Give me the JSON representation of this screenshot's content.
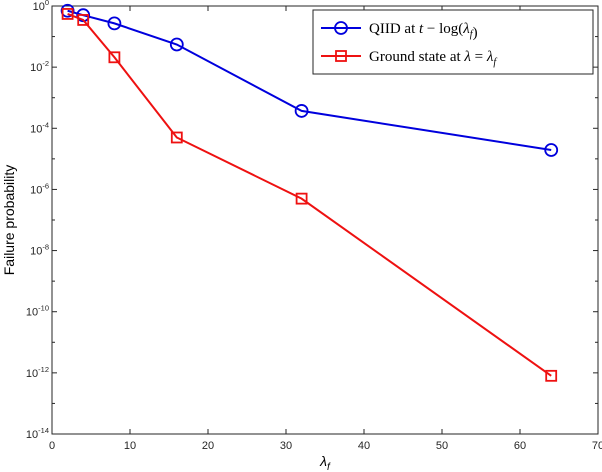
{
  "chart_data": {
    "type": "line",
    "xlabel": "λ",
    "xlabel_sub": "f",
    "ylabel": "Failure probability",
    "xlim": [
      0,
      70
    ],
    "ylim_exponent": [
      -14,
      0
    ],
    "yscale": "log",
    "x_ticks": [
      "0",
      "10",
      "20",
      "30",
      "40",
      "50",
      "60",
      "70"
    ],
    "y_ticks": [
      {
        "base": "10",
        "exp": "0"
      },
      {
        "base": "10",
        "exp": "-2"
      },
      {
        "base": "10",
        "exp": "-4"
      },
      {
        "base": "10",
        "exp": "-6"
      },
      {
        "base": "10",
        "exp": "-8"
      },
      {
        "base": "10",
        "exp": "-10"
      },
      {
        "base": "10",
        "exp": "-12"
      },
      {
        "base": "10",
        "exp": "-14"
      }
    ],
    "grid": false,
    "legend_position": "top-right",
    "series": [
      {
        "name": "QIID at t − log(λf)",
        "color": "#0000dd",
        "marker": "circle",
        "x": [
          2,
          4,
          8,
          16,
          32,
          64
        ],
        "y": [
          0.7,
          0.5,
          0.27,
          0.055,
          0.00037,
          1.95e-05
        ]
      },
      {
        "name": "Ground state at λ = λf",
        "color": "#ee1111",
        "marker": "square",
        "x": [
          2,
          4,
          8,
          16,
          32,
          64
        ],
        "y": [
          0.55,
          0.35,
          0.021,
          5e-05,
          5e-07,
          8e-13
        ]
      }
    ],
    "legend": [
      {
        "parts": [
          {
            "t": "QIID at ",
            "it": false
          },
          {
            "t": "t",
            "it": true
          },
          {
            "t": " − log(",
            "it": false
          },
          {
            "t": "λ",
            "it": true
          },
          {
            "t": "f",
            "it": true,
            "sub": true
          },
          {
            "t": ")",
            "it": false
          }
        ]
      },
      {
        "parts": [
          {
            "t": "Ground state at ",
            "it": false
          },
          {
            "t": "λ",
            "it": true
          },
          {
            "t": " = ",
            "it": false
          },
          {
            "t": "λ",
            "it": true
          },
          {
            "t": "f",
            "it": true,
            "sub": true
          }
        ]
      }
    ]
  }
}
